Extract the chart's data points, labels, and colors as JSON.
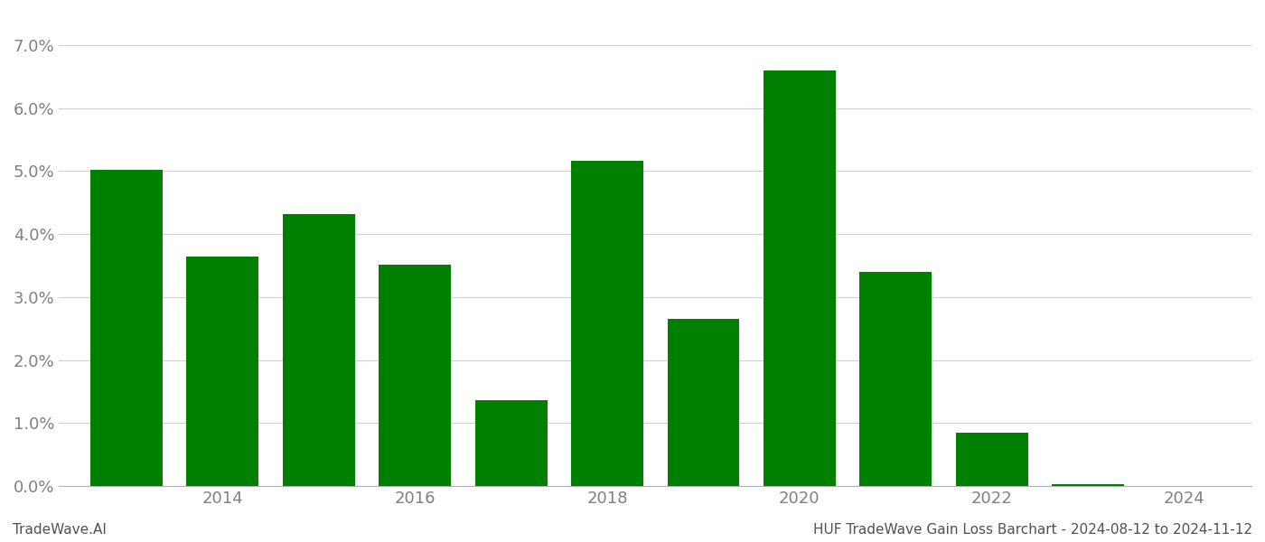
{
  "years": [
    2013,
    2014,
    2015,
    2016,
    2017,
    2018,
    2019,
    2020,
    2021,
    2022,
    2023
  ],
  "values": [
    0.0502,
    0.0365,
    0.0432,
    0.0351,
    0.0137,
    0.0517,
    0.0265,
    0.066,
    0.034,
    0.0085,
    0.0003
  ],
  "bar_color": "#008000",
  "background_color": "#ffffff",
  "ylabel_color": "#808080",
  "xlabel_color": "#808080",
  "grid_color": "#d0d0d0",
  "footer_left": "TradeWave.AI",
  "footer_right": "HUF TradeWave Gain Loss Barchart - 2024-08-12 to 2024-11-12",
  "xtick_labels": [
    "2014",
    "2016",
    "2018",
    "2020",
    "2022",
    "2024"
  ],
  "xtick_positions": [
    2014,
    2016,
    2018,
    2020,
    2022,
    2024
  ],
  "ylim": [
    0,
    0.075
  ],
  "ytick_vals": [
    0.0,
    0.01,
    0.02,
    0.03,
    0.04,
    0.05,
    0.06,
    0.07
  ],
  "xlim_left": 2012.3,
  "xlim_right": 2024.7,
  "bar_width": 0.75,
  "figsize": [
    14.0,
    6.0
  ],
  "dpi": 100,
  "tick_fontsize": 13,
  "footer_fontsize": 11,
  "footer_color": "#505050"
}
